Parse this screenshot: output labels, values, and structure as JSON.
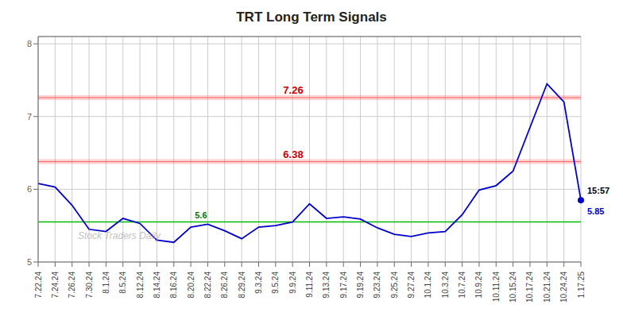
{
  "chart_data": {
    "type": "line",
    "title": "TRT Long Term Signals",
    "categories": [
      "7.22.24",
      "7.24.24",
      "7.26.24",
      "7.30.24",
      "8.1.24",
      "8.5.24",
      "8.12.24",
      "8.14.24",
      "8.16.24",
      "8.20.24",
      "8.22.24",
      "8.26.24",
      "8.29.24",
      "9.3.24",
      "9.5.24",
      "9.9.24",
      "9.11.24",
      "9.13.24",
      "9.17.24",
      "9.19.24",
      "9.23.24",
      "9.25.24",
      "9.27.24",
      "10.1.24",
      "10.3.24",
      "10.7.24",
      "10.9.24",
      "10.11.24",
      "10.15.24",
      "10.17.24",
      "10.21.24",
      "10.24.24",
      "1.17.25"
    ],
    "values": [
      6.08,
      6.03,
      5.78,
      5.45,
      5.42,
      5.6,
      5.53,
      5.3,
      5.27,
      5.48,
      5.52,
      5.43,
      5.32,
      5.48,
      5.5,
      5.55,
      5.8,
      5.6,
      5.62,
      5.59,
      5.47,
      5.38,
      5.35,
      5.4,
      5.42,
      5.65,
      5.99,
      6.05,
      6.25,
      6.85,
      7.45,
      7.2,
      5.85
    ],
    "color": "#0000cc",
    "ylim": [
      5.0,
      8.1
    ],
    "yticks": [
      5,
      6,
      7,
      8
    ],
    "grid": true,
    "hlines": [
      {
        "value": 5.55,
        "label": "5.6",
        "color": "#00bb00",
        "label_color": "#007700"
      },
      {
        "value": 6.38,
        "label": "6.38",
        "color": "#ff6666",
        "label_color": "#cc0000"
      },
      {
        "value": 7.26,
        "label": "7.26",
        "color": "#ff6666",
        "label_color": "#cc0000"
      }
    ],
    "annotations": [
      {
        "text": "15:57",
        "color": "#000000"
      },
      {
        "text": "5.85",
        "color": "#0000cc"
      }
    ],
    "watermark": "Stock Traders Daily"
  }
}
